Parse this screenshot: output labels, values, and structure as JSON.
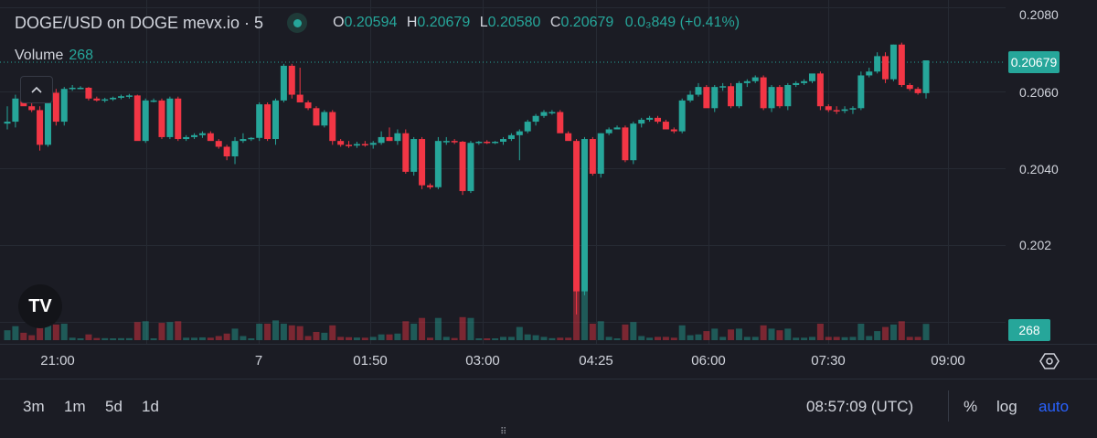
{
  "legend": {
    "symbol_title": "DOGE/USD on DOGE mevx.io · 5",
    "ohlc": {
      "o_label": "O",
      "o": "0.20594",
      "h_label": "H",
      "h": "0.20679",
      "l_label": "L",
      "l": "0.20580",
      "c_label": "C",
      "c": "0.20679",
      "change": "0.0₃849 (+0.41%)"
    },
    "volume_label": "Volume",
    "volume_value": "268"
  },
  "tv_logo": "TV",
  "price_axis": {
    "ticks": [
      "0.2080",
      "0.2060",
      "0.2040",
      "0.202"
    ],
    "last_price_tag": "0.20679",
    "volume_tag": "268"
  },
  "time_axis": {
    "ticks": [
      "21:00",
      "7",
      "01:50",
      "03:00",
      "04:25",
      "06:00",
      "07:30",
      "09:00"
    ]
  },
  "bottom_bar": {
    "ranges": [
      "3m",
      "1m",
      "5d",
      "1d"
    ],
    "clock": "08:57:09 (UTC)",
    "percent": "%",
    "log": "log",
    "auto": "auto"
  },
  "colors": {
    "up": "#26a69a",
    "down": "#f23645",
    "background": "#1b1c24",
    "grid": "#262a33",
    "accent_blue": "#2962ff"
  },
  "icons": {
    "collapse": "chevron-up-icon",
    "settings": "hexagon-settings-icon",
    "grip": "grip-dots-icon"
  },
  "chart_data": {
    "type": "candlestick",
    "title": "DOGE/USD on DOGE mevx.io · 5",
    "ylim": [
      0.2001,
      0.2082
    ],
    "y_ticks": [
      0.208,
      0.206,
      0.204,
      0.202
    ],
    "last_price": 0.20679,
    "series": [
      {
        "values": [
          [
            0.20515,
            0.2056,
            0.205,
            0.2052
          ],
          [
            0.2052,
            0.2059,
            0.20505,
            0.2058
          ],
          [
            0.2058,
            0.2061,
            0.20565,
            0.2056
          ],
          [
            0.2056,
            0.20575,
            0.20545,
            0.2055
          ],
          [
            0.2055,
            0.2056,
            0.20445,
            0.2046
          ],
          [
            0.2046,
            0.20605,
            0.20455,
            0.20595
          ],
          [
            0.20595,
            0.20605,
            0.2051,
            0.2052
          ],
          [
            0.2052,
            0.2061,
            0.2051,
            0.20605
          ],
          [
            0.20605,
            0.20615,
            0.206,
            0.20608
          ],
          [
            0.20608,
            0.20612,
            0.20604,
            0.20608
          ],
          [
            0.20608,
            0.2061,
            0.20575,
            0.2058
          ],
          [
            0.2058,
            0.20585,
            0.20572,
            0.20575
          ],
          [
            0.20575,
            0.20582,
            0.2057,
            0.20578
          ],
          [
            0.20578,
            0.20585,
            0.20574,
            0.20582
          ],
          [
            0.20582,
            0.2059,
            0.20578,
            0.20586
          ],
          [
            0.20586,
            0.20592,
            0.2058,
            0.20588
          ],
          [
            0.20588,
            0.2059,
            0.2048,
            0.2047
          ],
          [
            0.2047,
            0.2058,
            0.20465,
            0.20575
          ],
          [
            0.20575,
            0.2058,
            0.2057,
            0.20575
          ],
          [
            0.20575,
            0.2058,
            0.20475,
            0.2048
          ],
          [
            0.2048,
            0.20585,
            0.20475,
            0.2058
          ],
          [
            0.2058,
            0.20585,
            0.2047,
            0.20475
          ],
          [
            0.20475,
            0.20485,
            0.2047,
            0.2048
          ],
          [
            0.2048,
            0.2049,
            0.20475,
            0.20485
          ],
          [
            0.20485,
            0.20495,
            0.20478,
            0.2049
          ],
          [
            0.2049,
            0.20495,
            0.2048,
            0.2047
          ],
          [
            0.2047,
            0.20475,
            0.2045,
            0.20455
          ],
          [
            0.20455,
            0.2046,
            0.2042,
            0.2043
          ],
          [
            0.2043,
            0.2048,
            0.2041,
            0.2047
          ],
          [
            0.2047,
            0.2049,
            0.20465,
            0.20475
          ],
          [
            0.20475,
            0.2048,
            0.2047,
            0.20478
          ],
          [
            0.20478,
            0.2057,
            0.2047,
            0.20565
          ],
          [
            0.20565,
            0.2057,
            0.2047,
            0.20475
          ],
          [
            0.20475,
            0.2058,
            0.2046,
            0.20575
          ],
          [
            0.20575,
            0.2067,
            0.2057,
            0.20665
          ],
          [
            0.20665,
            0.2067,
            0.2058,
            0.2059
          ],
          [
            0.2059,
            0.2066,
            0.20575,
            0.2057
          ],
          [
            0.2057,
            0.20575,
            0.2055,
            0.20555
          ],
          [
            0.20555,
            0.2056,
            0.2051,
            0.2051
          ],
          [
            0.2051,
            0.2055,
            0.20505,
            0.20545
          ],
          [
            0.20545,
            0.2055,
            0.2046,
            0.2047
          ],
          [
            0.2047,
            0.20475,
            0.20455,
            0.2046
          ],
          [
            0.2046,
            0.2047,
            0.20452,
            0.20458
          ],
          [
            0.20458,
            0.20468,
            0.20452,
            0.20462
          ],
          [
            0.20462,
            0.2047,
            0.20455,
            0.2046
          ],
          [
            0.2046,
            0.2047,
            0.2045,
            0.20465
          ],
          [
            0.20465,
            0.20495,
            0.2046,
            0.2048
          ],
          [
            0.2048,
            0.20505,
            0.2047,
            0.2047
          ],
          [
            0.2047,
            0.205,
            0.2046,
            0.2049
          ],
          [
            0.2049,
            0.205,
            0.20385,
            0.2039
          ],
          [
            0.2039,
            0.2048,
            0.2038,
            0.20475
          ],
          [
            0.20475,
            0.2048,
            0.20345,
            0.20355
          ],
          [
            0.20355,
            0.2036,
            0.20345,
            0.2035
          ],
          [
            0.2035,
            0.2048,
            0.20345,
            0.2047
          ],
          [
            0.2047,
            0.2048,
            0.2046,
            0.2047
          ],
          [
            0.2047,
            0.20475,
            0.20462,
            0.20468
          ],
          [
            0.20468,
            0.2047,
            0.2033,
            0.2034
          ],
          [
            0.2034,
            0.2047,
            0.20335,
            0.20465
          ],
          [
            0.20465,
            0.2047,
            0.2046,
            0.20468
          ],
          [
            0.20468,
            0.20472,
            0.20462,
            0.20466
          ],
          [
            0.20466,
            0.2047,
            0.20462,
            0.20468
          ],
          [
            0.20468,
            0.2048,
            0.2046,
            0.20475
          ],
          [
            0.20475,
            0.2049,
            0.2047,
            0.20485
          ],
          [
            0.20485,
            0.205,
            0.2042,
            0.20495
          ],
          [
            0.20495,
            0.20525,
            0.2049,
            0.2052
          ],
          [
            0.2052,
            0.2054,
            0.2051,
            0.20535
          ],
          [
            0.20535,
            0.2055,
            0.2053,
            0.20545
          ],
          [
            0.20545,
            0.2055,
            0.20538,
            0.20545
          ],
          [
            0.20545,
            0.2055,
            0.20535,
            0.2049
          ],
          [
            0.2049,
            0.20495,
            0.2048,
            0.2047
          ],
          [
            0.2047,
            0.20475,
            0.2002,
            0.2008
          ],
          [
            0.2008,
            0.2048,
            0.2007,
            0.20475
          ],
          [
            0.20475,
            0.2048,
            0.2038,
            0.20385
          ],
          [
            0.20385,
            0.2049,
            0.20375,
            0.2049
          ],
          [
            0.2049,
            0.20505,
            0.20485,
            0.205
          ],
          [
            0.205,
            0.2051,
            0.205,
            0.20505
          ],
          [
            0.20505,
            0.2051,
            0.20415,
            0.2042
          ],
          [
            0.2042,
            0.2052,
            0.2041,
            0.20515
          ],
          [
            0.20515,
            0.2053,
            0.20505,
            0.20525
          ],
          [
            0.20525,
            0.20535,
            0.2052,
            0.2053
          ],
          [
            0.2053,
            0.20535,
            0.20515,
            0.2052
          ],
          [
            0.2052,
            0.20525,
            0.20505,
            0.205
          ],
          [
            0.205,
            0.20505,
            0.2049,
            0.20495
          ],
          [
            0.20495,
            0.2058,
            0.2049,
            0.20575
          ],
          [
            0.20575,
            0.206,
            0.2057,
            0.2059
          ],
          [
            0.2059,
            0.2062,
            0.20585,
            0.2061
          ],
          [
            0.2061,
            0.20615,
            0.2056,
            0.20555
          ],
          [
            0.20555,
            0.20615,
            0.20545,
            0.2061
          ],
          [
            0.2061,
            0.2062,
            0.206,
            0.20612
          ],
          [
            0.20612,
            0.2062,
            0.20555,
            0.2056
          ],
          [
            0.2056,
            0.20625,
            0.20555,
            0.2062
          ],
          [
            0.2062,
            0.2063,
            0.2061,
            0.20625
          ],
          [
            0.20625,
            0.2064,
            0.2062,
            0.20635
          ],
          [
            0.20635,
            0.2064,
            0.2055,
            0.20555
          ],
          [
            0.20555,
            0.20615,
            0.20545,
            0.2061
          ],
          [
            0.2061,
            0.20615,
            0.20555,
            0.2056
          ],
          [
            0.2056,
            0.2062,
            0.2055,
            0.20615
          ],
          [
            0.20615,
            0.20625,
            0.2061,
            0.2062
          ],
          [
            0.2062,
            0.2063,
            0.20615,
            0.20625
          ],
          [
            0.20625,
            0.2064,
            0.2062,
            0.20645
          ],
          [
            0.20645,
            0.2065,
            0.2055,
            0.2056
          ],
          [
            0.2056,
            0.20565,
            0.20545,
            0.2055
          ],
          [
            0.2055,
            0.2056,
            0.2054,
            0.20548
          ],
          [
            0.20548,
            0.2056,
            0.20542,
            0.20552
          ],
          [
            0.20552,
            0.2056,
            0.2054,
            0.20555
          ],
          [
            0.20555,
            0.2065,
            0.2055,
            0.2064
          ],
          [
            0.2064,
            0.2066,
            0.20635,
            0.2065
          ],
          [
            0.2065,
            0.207,
            0.20645,
            0.2069
          ],
          [
            0.2069,
            0.207,
            0.2062,
            0.2063
          ],
          [
            0.2063,
            0.2072,
            0.20625,
            0.2072
          ],
          [
            0.2072,
            0.20725,
            0.2061,
            0.20615
          ],
          [
            0.20615,
            0.2062,
            0.206,
            0.20605
          ],
          [
            0.20605,
            0.2061,
            0.2059,
            0.20594
          ],
          [
            0.20594,
            0.20679,
            0.2058,
            0.20679
          ]
        ]
      }
    ]
  }
}
